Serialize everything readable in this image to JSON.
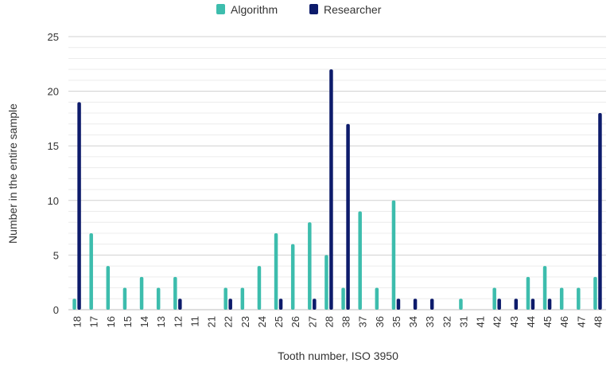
{
  "chart_data": {
    "type": "bar",
    "xlabel": "Tooth number, ISO 3950",
    "ylabel": "Number in the entire sample",
    "ylim": [
      0,
      25
    ],
    "yticks": [
      0,
      5,
      10,
      15,
      20,
      25
    ],
    "grid": true,
    "legend_position": "top-center",
    "categories": [
      "18",
      "17",
      "16",
      "15",
      "14",
      "13",
      "12",
      "11",
      "21",
      "22",
      "23",
      "24",
      "25",
      "26",
      "27",
      "28",
      "38",
      "37",
      "36",
      "35",
      "34",
      "33",
      "32",
      "31",
      "41",
      "42",
      "43",
      "44",
      "45",
      "46",
      "47",
      "48"
    ],
    "series": [
      {
        "name": "Algorithm",
        "color": "#3dbdad",
        "values": [
          1,
          7,
          4,
          2,
          3,
          2,
          3,
          0,
          0,
          2,
          2,
          4,
          7,
          6,
          8,
          5,
          2,
          9,
          2,
          10,
          0,
          0,
          0,
          1,
          0,
          2,
          0,
          3,
          4,
          2,
          2,
          3
        ]
      },
      {
        "name": "Researcher",
        "color": "#0d1b6b",
        "values": [
          19,
          0,
          0,
          0,
          0,
          0,
          1,
          0,
          0,
          1,
          0,
          0,
          1,
          0,
          1,
          22,
          17,
          0,
          0,
          1,
          1,
          1,
          0,
          0,
          0,
          1,
          1,
          1,
          1,
          0,
          0,
          18
        ]
      }
    ]
  }
}
